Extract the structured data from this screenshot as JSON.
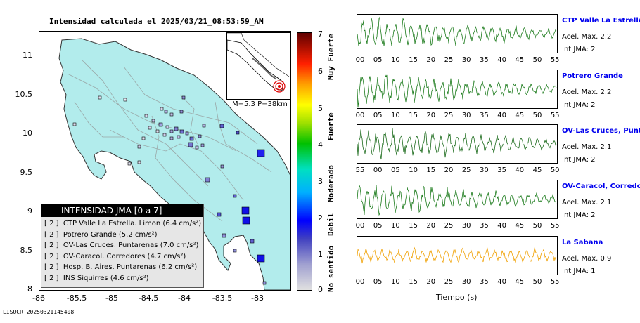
{
  "map": {
    "title": "Intensidad calculada el 2025/03/21_08:53:59_AM",
    "y_ticks": [
      "11",
      "10.5",
      "10",
      "9.5",
      "9",
      "8.5",
      "8"
    ],
    "x_ticks": [
      "-86",
      "-85.5",
      "-85",
      "-84.5",
      "-84",
      "-83.5",
      "-83"
    ],
    "inset_label": "M=5.3 P=38km"
  },
  "legend": {
    "title": "INTENSIDAD JMA [0 a 7]",
    "items": [
      {
        "intensity": "[ 2 ]",
        "name": "CTP Valle La Estrella. Limon",
        "accel": "(6.4 cm/s²)"
      },
      {
        "intensity": "[ 2 ]",
        "name": "Potrero Grande",
        "accel": "(5.2 cm/s²)"
      },
      {
        "intensity": "[ 2 ]",
        "name": "OV-Las Cruces. Puntarenas",
        "accel": "(7.0 cm/s²)"
      },
      {
        "intensity": "[ 2 ]",
        "name": "OV-Caracol. Corredores",
        "accel": "(4.7 cm/s²)"
      },
      {
        "intensity": "[ 2 ]",
        "name": "Hosp. B. Aires. Puntarenas",
        "accel": "(6.2 cm/s²)"
      },
      {
        "intensity": "[ 2 ]",
        "name": "INS Siquirres",
        "accel": "(4.6 cm/s²)"
      }
    ]
  },
  "colorbar": {
    "ticks": [
      "7",
      "6",
      "5",
      "4",
      "3",
      "2",
      "1",
      "0"
    ],
    "categories": [
      "Muy Fuerte",
      "Fuerte",
      "Moderado",
      "Debil",
      "No sentido"
    ]
  },
  "footer_id": "LISUCR 20250321145408",
  "traces": {
    "x_label": "Tiempo (s)",
    "stations": [
      {
        "name": "CTP Valle La Estrella, L",
        "accel": "Acel. Max. 2.2",
        "jma": "Int JMA: 2",
        "color": "#1a7a1a",
        "ticks": [
          "00",
          "05",
          "10",
          "15",
          "20",
          "25",
          "30",
          "35",
          "40",
          "45",
          "50",
          "55"
        ]
      },
      {
        "name": "Potrero Grande",
        "accel": "Acel. Max. 2.2",
        "jma": "Int JMA: 2",
        "color": "#1a7a1a",
        "ticks": [
          "00",
          "05",
          "10",
          "15",
          "20",
          "25",
          "30",
          "35",
          "40",
          "45",
          "50",
          "55"
        ]
      },
      {
        "name": "OV-Las Cruces, Puntar",
        "accel": "Acel. Max. 2.1",
        "jma": "Int JMA: 2",
        "color": "#1a6a1a",
        "ticks": [
          "55",
          "00",
          "05",
          "10",
          "15",
          "20",
          "25",
          "30",
          "35",
          "40",
          "45",
          "50"
        ]
      },
      {
        "name": "OV-Caracol, Corredore",
        "accel": "Acel. Max. 2.1",
        "jma": "Int JMA: 2",
        "color": "#1a7a1a",
        "ticks": [
          "00",
          "05",
          "10",
          "15",
          "20",
          "25",
          "30",
          "35",
          "40",
          "45",
          "50",
          "55"
        ]
      },
      {
        "name": "La Sabana",
        "accel": "Acel. Max. 0.9",
        "jma": "Int JMA: 1",
        "color": "#f0a000",
        "ticks": [
          "00",
          "05",
          "10",
          "15",
          "20",
          "25",
          "30",
          "35",
          "40",
          "45",
          "50",
          "55"
        ]
      }
    ]
  }
}
